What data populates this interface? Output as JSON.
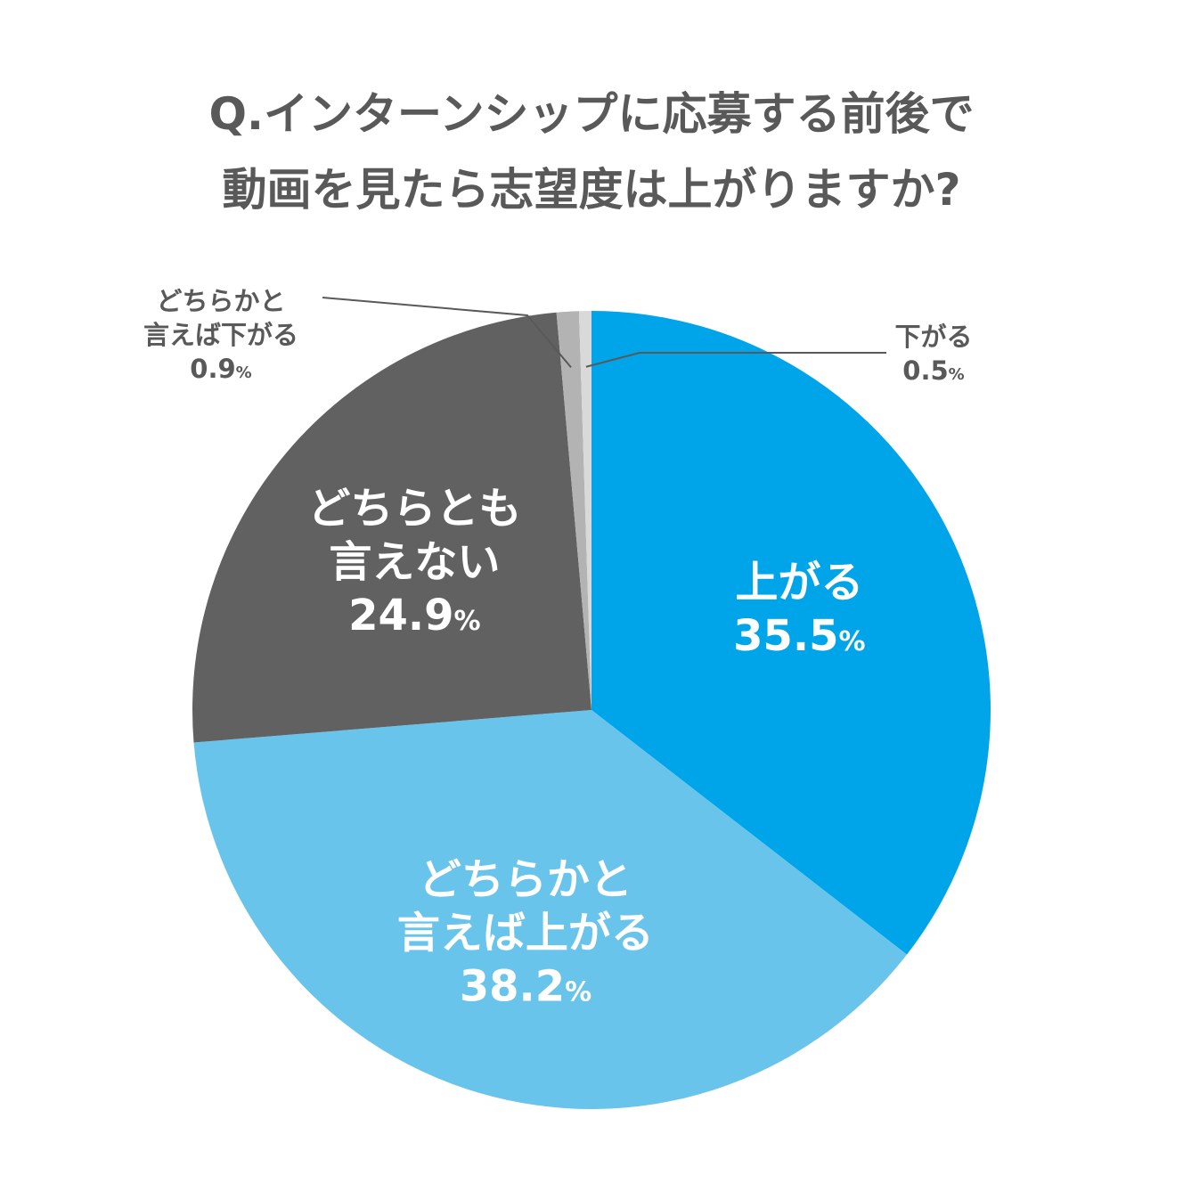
{
  "title": {
    "line1": "Q.インターンシップに応募する前後で",
    "line2": "動画を見たら志望度は上がりますか?"
  },
  "chart_data": {
    "type": "pie",
    "start": "12 o'clock",
    "direction": "clockwise",
    "slices": [
      {
        "label_lines": [
          "上がる"
        ],
        "value": 35.5,
        "value_text": "35.5",
        "unit": "%",
        "color": "#00a5e9",
        "label_position": "inside"
      },
      {
        "label_lines": [
          "どちらかと",
          "言えば上がる"
        ],
        "value": 38.2,
        "value_text": "38.2",
        "unit": "%",
        "color": "#69c4ec",
        "label_position": "inside"
      },
      {
        "label_lines": [
          "どちらとも",
          "言えない"
        ],
        "value": 24.9,
        "value_text": "24.9",
        "unit": "%",
        "color": "#616161",
        "label_position": "inside"
      },
      {
        "label_lines": [
          "どちらかと",
          "言えば下がる"
        ],
        "value": 0.9,
        "value_text": "0.9",
        "unit": "%",
        "color": "#b3b3b3",
        "label_position": "outside-left"
      },
      {
        "label_lines": [
          "下がる"
        ],
        "value": 0.5,
        "value_text": "0.5",
        "unit": "%",
        "color": "#d9d9d9",
        "label_position": "outside-right"
      }
    ]
  }
}
